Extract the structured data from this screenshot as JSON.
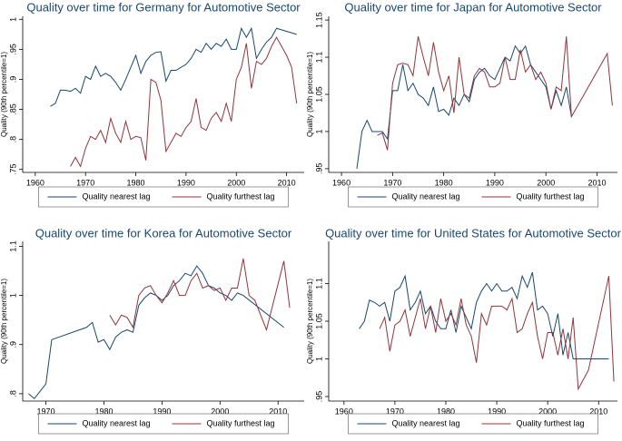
{
  "chart_data": [
    {
      "type": "line",
      "title": "Quality over time for Germany for Automotive Sector",
      "ylabel": "Quality (90th percentile=1)",
      "xlim": [
        1957.5,
        2013.5
      ],
      "xticks": [
        1960,
        1970,
        1980,
        1990,
        2000,
        2010
      ],
      "ylim": [
        0.745,
        1.005
      ],
      "yticks": [
        {
          "value": 0.75,
          "label": ".75"
        },
        {
          "value": 0.8,
          "label": ".8"
        },
        {
          "value": 0.85,
          "label": ".85"
        },
        {
          "value": 0.9,
          "label": ".9"
        },
        {
          "value": 0.95,
          "label": ".95"
        },
        1
      ],
      "series": [
        {
          "name": "Quality nearest lag",
          "color": "#1a476f",
          "x": [
            1963,
            1964,
            1965,
            1966,
            1967,
            1968,
            1969,
            1970,
            1971,
            1972,
            1973,
            1974,
            1975,
            1976,
            1977,
            1978,
            1979,
            1980,
            1981,
            1982,
            1983,
            1984,
            1985,
            1986,
            1987,
            1988,
            1989,
            1990,
            1991,
            1992,
            1993,
            1994,
            1995,
            1996,
            1997,
            1998,
            1999,
            2000,
            2001,
            2002,
            2003,
            2004,
            2005,
            2006,
            2007,
            2008,
            2010,
            2012
          ],
          "values": [
            0.855,
            0.86,
            0.882,
            0.882,
            0.88,
            0.885,
            0.877,
            0.905,
            0.9,
            0.922,
            0.905,
            0.91,
            0.905,
            0.895,
            0.882,
            0.9,
            0.92,
            0.94,
            0.91,
            0.93,
            0.94,
            0.945,
            0.946,
            0.897,
            0.915,
            0.915,
            0.92,
            0.925,
            0.935,
            0.95,
            0.945,
            0.96,
            0.95,
            0.96,
            0.955,
            0.967,
            0.95,
            0.95,
            0.985,
            0.97,
            0.985,
            0.935,
            0.95,
            0.962,
            0.97,
            0.985,
            0.98,
            0.975
          ]
        },
        {
          "name": "Quality furthest lag",
          "color": "#90353b",
          "x": [
            1967,
            1968,
            1969,
            1970,
            1971,
            1972,
            1973,
            1974,
            1975,
            1976,
            1977,
            1978,
            1979,
            1980,
            1981,
            1982,
            1983,
            1984,
            1985,
            1986,
            1987,
            1988,
            1989,
            1990,
            1991,
            1992,
            1993,
            1994,
            1995,
            1996,
            1997,
            1998,
            1999,
            2000,
            2001,
            2002,
            2003,
            2004,
            2005,
            2006,
            2007,
            2008,
            2010,
            2011,
            2012
          ],
          "values": [
            0.755,
            0.77,
            0.755,
            0.785,
            0.805,
            0.8,
            0.815,
            0.795,
            0.835,
            0.81,
            0.795,
            0.83,
            0.8,
            0.805,
            0.803,
            0.765,
            0.9,
            0.895,
            0.865,
            0.78,
            0.795,
            0.81,
            0.805,
            0.82,
            0.83,
            0.868,
            0.82,
            0.815,
            0.835,
            0.845,
            0.83,
            0.86,
            0.83,
            0.9,
            0.92,
            0.96,
            0.885,
            0.93,
            0.925,
            0.935,
            0.955,
            0.97,
            0.94,
            0.92,
            0.86
          ]
        }
      ]
    },
    {
      "type": "line",
      "title": "Quality over time for Japan for Automotive Sector",
      "ylabel": "Quality (90th percentile=1)",
      "xlim": [
        1957.5,
        2014
      ],
      "xticks": [
        1960,
        1970,
        1980,
        1990,
        2000,
        2010
      ],
      "ylim": [
        0.945,
        1.155
      ],
      "yticks": [
        {
          "value": 0.95,
          "label": ".95"
        },
        1,
        1.05,
        1.1,
        1.15
      ],
      "series": [
        {
          "name": "Quality nearest lag",
          "color": "#1a476f",
          "x": [
            1963,
            1964,
            1965,
            1966,
            1967,
            1968,
            1969,
            1970,
            1971,
            1972,
            1973,
            1974,
            1975,
            1976,
            1977,
            1978,
            1979,
            1980,
            1981,
            1982,
            1983,
            1984,
            1985,
            1986,
            1987,
            1988,
            1989,
            1990,
            1991,
            1992,
            1993,
            1994,
            1995,
            1996,
            1997,
            1998,
            1999,
            2000,
            2001,
            2002,
            2003,
            2004,
            2005
          ],
          "values": [
            0.95,
            1.0,
            1.015,
            1.0,
            1.0,
            1.0,
            0.99,
            1.055,
            1.055,
            1.09,
            1.055,
            1.065,
            1.05,
            1.045,
            1.035,
            1.06,
            1.027,
            1.03,
            1.022,
            1.045,
            1.035,
            1.05,
            1.04,
            1.07,
            1.08,
            1.085,
            1.075,
            1.07,
            1.085,
            1.1,
            1.095,
            1.115,
            1.105,
            1.115,
            1.09,
            1.08,
            1.07,
            1.06,
            1.03,
            1.055,
            1.035,
            1.06,
            1.02
          ]
        },
        {
          "name": "Quality furthest lag",
          "color": "#90353b",
          "x": [
            1967,
            1968,
            1969,
            1970,
            1971,
            1972,
            1973,
            1974,
            1975,
            1976,
            1977,
            1978,
            1979,
            1980,
            1981,
            1982,
            1983,
            1984,
            1985,
            1986,
            1987,
            1988,
            1989,
            1990,
            1991,
            1992,
            1993,
            1994,
            1995,
            1996,
            1997,
            1998,
            1999,
            2000,
            2001,
            2002,
            2003,
            2004,
            2005,
            2012,
            2013
          ],
          "values": [
            0.995,
            0.998,
            0.975,
            1.065,
            1.09,
            1.092,
            1.09,
            1.075,
            1.128,
            1.1,
            1.075,
            1.12,
            1.08,
            1.055,
            1.075,
            1.025,
            1.1,
            1.05,
            1.045,
            1.075,
            1.085,
            1.08,
            1.06,
            1.06,
            1.065,
            1.1,
            1.07,
            1.07,
            1.11,
            1.08,
            1.09,
            1.07,
            1.08,
            1.065,
            1.03,
            1.06,
            1.055,
            1.128,
            1.02,
            1.105,
            1.035
          ]
        }
      ]
    },
    {
      "type": "line",
      "title": "Quality over time for Korea for Automotive Sector",
      "ylabel": "Quality (90th percentile=1)",
      "xlim": [
        1966,
        2014.5
      ],
      "xticks": [
        1970,
        1980,
        1990,
        2000,
        2010
      ],
      "ylim": [
        0.785,
        1.11
      ],
      "yticks": [
        {
          "value": 0.8,
          "label": ".8"
        },
        {
          "value": 0.9,
          "label": ".9"
        },
        1,
        1.1
      ],
      "series": [
        {
          "name": "Quality nearest lag",
          "color": "#1a476f",
          "x": [
            1967,
            1968,
            1970,
            1971,
            1977,
            1978,
            1979,
            1980,
            1981,
            1982,
            1983,
            1984,
            1985,
            1986,
            1987,
            1988,
            1989,
            1990,
            1991,
            1992,
            1993,
            1994,
            1995,
            1996,
            1997,
            1998,
            1999,
            2000,
            2001,
            2002,
            2003,
            2004,
            2011
          ],
          "values": [
            0.8,
            0.79,
            0.82,
            0.91,
            0.935,
            0.945,
            0.905,
            0.91,
            0.89,
            0.915,
            0.925,
            0.93,
            0.925,
            0.98,
            0.995,
            1.005,
            1.0,
            0.99,
            1.0,
            1.02,
            1.03,
            1.045,
            1.04,
            1.06,
            1.045,
            1.02,
            1.015,
            1.005,
            1.0,
            0.99,
            1.005,
            1.0,
            0.935
          ]
        },
        {
          "name": "Quality furthest lag",
          "color": "#90353b",
          "x": [
            1981,
            1982,
            1983,
            1984,
            1985,
            1986,
            1987,
            1988,
            1989,
            1990,
            1991,
            1992,
            1993,
            1994,
            1995,
            1996,
            1997,
            1998,
            1999,
            2000,
            2001,
            2002,
            2003,
            2004,
            2005,
            2006,
            2008,
            2011,
            2012
          ],
          "values": [
            0.96,
            0.94,
            0.96,
            0.955,
            0.935,
            1.0,
            1.015,
            1.02,
            1.0,
            0.985,
            1.005,
            1.03,
            1.0,
            1.0,
            1.03,
            1.045,
            1.015,
            1.02,
            1.01,
            1.015,
            0.99,
            1.015,
            1.015,
            1.075,
            1.0,
            0.99,
            0.93,
            1.07,
            0.975
          ]
        }
      ]
    },
    {
      "type": "line",
      "title": "Quality over time for United States for Automotive Sector",
      "ylabel": "Quality (90th percentile=1)",
      "xlim": [
        1957,
        2013.7
      ],
      "xticks": [
        1960,
        1970,
        1980,
        1990,
        2000,
        2010
      ],
      "ylim": [
        0.944,
        1.156
      ],
      "yticks": [
        {
          "value": 0.95,
          "label": ".95"
        },
        1,
        1.05,
        1.1
      ],
      "series": [
        {
          "name": "Quality nearest lag",
          "color": "#1a476f",
          "x": [
            1963,
            1964,
            1965,
            1966,
            1967,
            1968,
            1969,
            1970,
            1971,
            1972,
            1973,
            1974,
            1975,
            1976,
            1977,
            1978,
            1979,
            1980,
            1981,
            1982,
            1983,
            1984,
            1985,
            1986,
            1987,
            1988,
            1989,
            1990,
            1991,
            1992,
            1993,
            1994,
            1995,
            1996,
            1997,
            1998,
            1999,
            2000,
            2001,
            2002,
            2003,
            2004,
            2005,
            2012
          ],
          "values": [
            1.04,
            1.05,
            1.078,
            1.075,
            1.07,
            1.075,
            1.05,
            1.09,
            1.095,
            1.11,
            1.065,
            1.075,
            1.09,
            1.06,
            1.07,
            1.05,
            1.04,
            1.04,
            1.065,
            1.035,
            1.07,
            1.055,
            1.04,
            1.075,
            1.09,
            1.1,
            1.09,
            1.1,
            1.09,
            1.09,
            1.095,
            1.08,
            1.11,
            1.095,
            1.115,
            1.065,
            1.07,
            1.06,
            1.03,
            1.06,
            1.005,
            1.035,
            1.0,
            1.0
          ]
        },
        {
          "name": "Quality furthest lag",
          "color": "#90353b",
          "x": [
            1967,
            1968,
            1969,
            1970,
            1971,
            1972,
            1973,
            1974,
            1975,
            1976,
            1977,
            1978,
            1979,
            1980,
            1981,
            1982,
            1983,
            1984,
            1985,
            1986,
            1987,
            1988,
            1989,
            1990,
            1991,
            1992,
            1993,
            1994,
            1995,
            1996,
            1997,
            1998,
            1999,
            2000,
            2001,
            2002,
            2003,
            2004,
            2005,
            2006,
            2008,
            2012,
            2013
          ],
          "values": [
            1.04,
            1.055,
            1.01,
            1.045,
            1.05,
            1.065,
            1.03,
            1.055,
            1.08,
            1.04,
            1.07,
            1.035,
            1.08,
            1.05,
            1.06,
            1.045,
            1.08,
            1.045,
            1.03,
            0.995,
            1.06,
            1.045,
            1.07,
            1.07,
            1.07,
            1.065,
            1.08,
            1.035,
            1.04,
            1.06,
            1.075,
            1.03,
            1.0,
            1.035,
            1.035,
            1.005,
            1.04,
            1.0,
            1.055,
            0.96,
            0.985,
            1.11,
            0.97
          ]
        }
      ]
    }
  ]
}
